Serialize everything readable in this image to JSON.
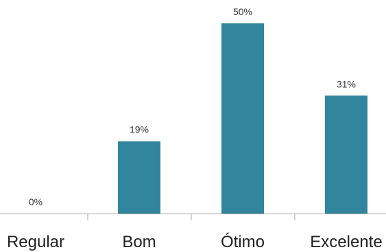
{
  "chart_data": {
    "type": "bar",
    "categories": [
      "Regular",
      "Bom",
      "Ótimo",
      "Excelente"
    ],
    "values": [
      0,
      19,
      50,
      31
    ],
    "data_labels": [
      "0%",
      "19%",
      "50%",
      "31%"
    ],
    "unit": "%",
    "ylim": [
      0,
      50
    ],
    "grid": false,
    "legend": "none",
    "bar_color": "#31859c"
  }
}
